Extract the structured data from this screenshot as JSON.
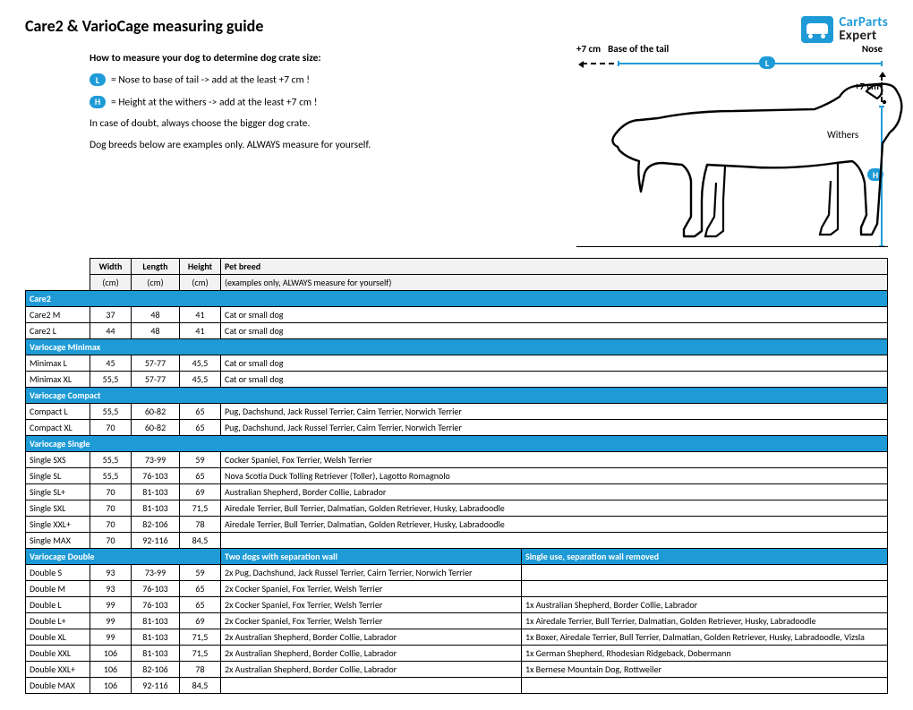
{
  "title": "Care2 & VarioCage measuring guide",
  "logo": {
    "line1": "CarParts",
    "line2": "Expert"
  },
  "intro": {
    "howto": "How to measure your dog to determine dog crate size:",
    "l_note": "= Nose to base of tail -> add at the least +7 cm !",
    "h_note": "= Height at the withers -> add at the least +7 cm !",
    "doubt": "In case of doubt, always choose the bigger dog crate.",
    "breeds_note": "Dog breeds below are examples only. ALWAYS measure for yourself."
  },
  "diagram": {
    "plus7": "+7 cm",
    "base_tail": "Base of the tail",
    "nose": "Nose",
    "withers": "Withers",
    "L": "L",
    "H": "H"
  },
  "columns": {
    "width": "Width",
    "length": "Length",
    "height": "Height",
    "breed": "Pet breed",
    "unit": "(cm)",
    "breed_sub": "(examples only, ALWAYS measure for yourself)"
  },
  "sections": [
    {
      "title": "Care2",
      "span": "full1",
      "rows": [
        {
          "name": "Care2 M",
          "w": "37",
          "l": "48",
          "h": "41",
          "b": "Cat or small dog"
        },
        {
          "name": "Care2 L",
          "w": "44",
          "l": "48",
          "h": "41",
          "b": "Cat or small dog"
        }
      ]
    },
    {
      "title": "Variocage Minimax",
      "span": "full1",
      "rows": [
        {
          "name": "Minimax L",
          "w": "45",
          "l": "57-77",
          "h": "45,5",
          "b": "Cat or small dog"
        },
        {
          "name": "Minimax XL",
          "w": "55,5",
          "l": "57-77",
          "h": "45,5",
          "b": "Cat or small dog"
        }
      ]
    },
    {
      "title": "Variocage Compact",
      "span": "full1",
      "rows": [
        {
          "name": "Compact L",
          "w": "55,5",
          "l": "60-82",
          "h": "65",
          "b": "Pug, Dachshund, Jack Russel Terrier, Cairn Terrier, Norwich Terrier"
        },
        {
          "name": "Compact XL",
          "w": "70",
          "l": "60-82",
          "h": "65",
          "b": "Pug, Dachshund, Jack Russel Terrier, Cairn Terrier, Norwich Terrier"
        }
      ]
    },
    {
      "title": "Variocage Single",
      "span": "full1",
      "rows": [
        {
          "name": "Single SXS",
          "w": "55,5",
          "l": "73-99",
          "h": "59",
          "b": "Cocker Spaniel, Fox Terrier, Welsh Terrier"
        },
        {
          "name": "Single SL",
          "w": "55,5",
          "l": "76-103",
          "h": "65",
          "b": "Nova Scotia Duck Tolling Retriever (Toller), Lagotto Romagnolo"
        },
        {
          "name": "Single SL+",
          "w": "70",
          "l": "81-103",
          "h": "69",
          "b": "Australian Shepherd, Border Collie, Labrador"
        },
        {
          "name": "Single SXL",
          "w": "70",
          "l": "81-103",
          "h": "71,5",
          "b": "Airedale Terrier, Bull Terrier, Dalmatian, Golden Retriever, Husky, Labradoodle"
        },
        {
          "name": "Single XXL+",
          "w": "70",
          "l": "82-106",
          "h": "78",
          "b": "Airedale Terrier, Bull Terrier, Dalmatian, Golden Retriever, Husky, Labradoodle"
        },
        {
          "name": "Single MAX",
          "w": "70",
          "l": "92-116",
          "h": "84,5",
          "b": ""
        }
      ]
    },
    {
      "title": "Variocage Double",
      "title2": "Two dogs with separation wall",
      "title3": "Single use, separation wall removed",
      "span": "full2",
      "rows": [
        {
          "name": "Double S",
          "w": "93",
          "l": "73-99",
          "h": "59",
          "b": "2x Pug, Dachshund, Jack Russel Terrier, Cairn Terrier, Norwich Terrier",
          "s": ""
        },
        {
          "name": "Double M",
          "w": "93",
          "l": "76-103",
          "h": "65",
          "b": "2x Cocker Spaniel, Fox Terrier, Welsh Terrier",
          "s": ""
        },
        {
          "name": "Double L",
          "w": "99",
          "l": "76-103",
          "h": "65",
          "b": "2x Cocker Spaniel, Fox Terrier, Welsh Terrier",
          "s": "1x Australian Shepherd, Border Collie, Labrador"
        },
        {
          "name": "Double L+",
          "w": "99",
          "l": "81-103",
          "h": "69",
          "b": "2x Cocker Spaniel, Fox Terrier, Welsh Terrier",
          "s": "1x Airedale Terrier, Bull Terrier, Dalmatian, Golden Retriever, Husky, Labradoodle"
        },
        {
          "name": "Double XL",
          "w": "99",
          "l": "81-103",
          "h": "71,5",
          "b": "2x Australian Shepherd, Border Collie, Labrador",
          "s": "1x Boxer, Airedale Terrier, Bull Terrier, Dalmatian, Golden Retriever, Husky, Labradoodle, Vizsla"
        },
        {
          "name": "Double XXL",
          "w": "106",
          "l": "81-103",
          "h": "71,5",
          "b": "2x Australian Shepherd, Border Collie, Labrador",
          "s": "1x German Shepherd, Rhodesian Ridgeback, Dobermann"
        },
        {
          "name": "Double XXL+",
          "w": "106",
          "l": "82-106",
          "h": "78",
          "b": "2x Australian Shepherd, Border Collie, Labrador",
          "s": "1x Bernese Mountain Dog, Rottweiler"
        },
        {
          "name": "Double MAX",
          "w": "106",
          "l": "92-116",
          "h": "84,5",
          "b": "",
          "s": ""
        }
      ]
    }
  ],
  "colors": {
    "accent": "#1e9bd7",
    "border": "#000000",
    "header_bg": "#f2f2f2"
  }
}
